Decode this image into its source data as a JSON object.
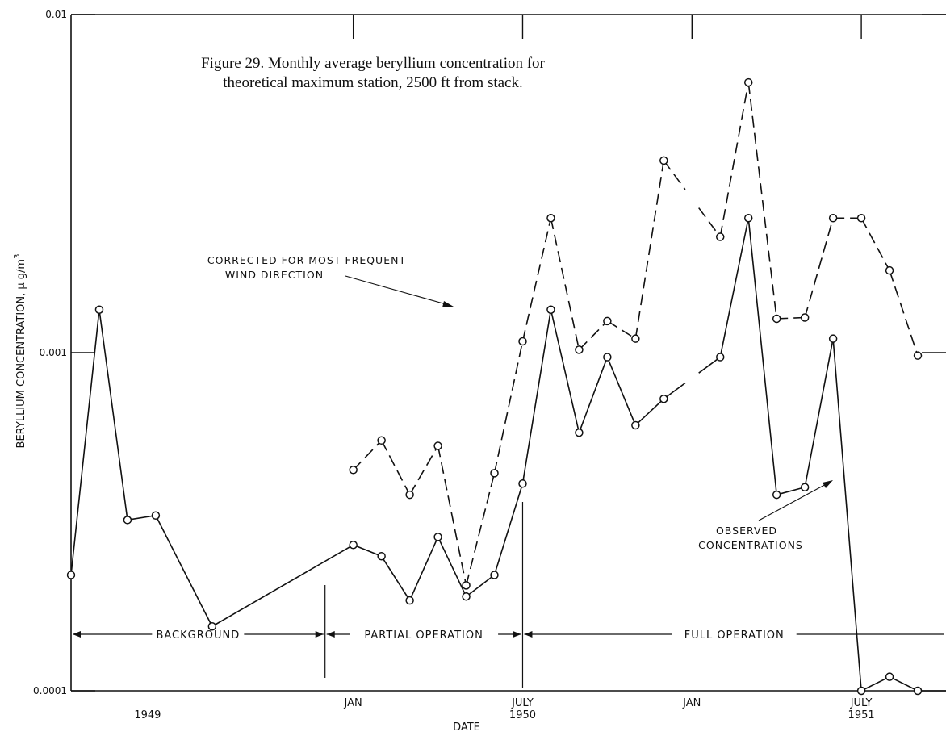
{
  "chart_data": {
    "type": "line",
    "title": "Figure 29. Monthly average beryllium concentration for",
    "subtitle": "theoretical maximum station, 2500 ft from stack.",
    "xlabel": "DATE",
    "ylabel": "BERYLLIUM  CONCENTRATION, μ g/m",
    "ylabel_sup": "3",
    "y_scale": "log",
    "ylim": [
      0.0001,
      0.01
    ],
    "y_ticks": [
      "0.01",
      "0.001",
      "0.0001"
    ],
    "x_range": [
      "1949-03",
      "1951-10"
    ],
    "x_ticks": [
      {
        "label": "JAN",
        "date": "1950-01"
      },
      {
        "label": "JULY",
        "date": "1950-07"
      },
      {
        "label": "JAN",
        "date": "1951-01"
      },
      {
        "label": "JULY",
        "date": "1951-07"
      }
    ],
    "year_labels": [
      {
        "label": "1949",
        "date": "1949-06"
      },
      {
        "label": "1950",
        "date": "1950-07"
      },
      {
        "label": "1951",
        "date": "1951-07"
      }
    ],
    "series": [
      {
        "style": "solid",
        "points": [
          {
            "date": "1949-03",
            "value": 0.00022
          },
          {
            "date": "1949-04",
            "value": 0.00134
          },
          {
            "date": "1949-05",
            "value": 0.00032
          },
          {
            "date": "1949-06",
            "value": 0.00033
          },
          {
            "date": "1949-08",
            "value": 0.000155
          },
          {
            "date": "1950-01",
            "value": 0.00027
          },
          {
            "date": "1950-02",
            "value": 0.00025
          },
          {
            "date": "1950-03",
            "value": 0.000185
          },
          {
            "date": "1950-04",
            "value": 0.000285
          },
          {
            "date": "1950-05",
            "value": 0.00019
          },
          {
            "date": "1950-06",
            "value": 0.00022
          },
          {
            "date": "1950-07",
            "value": 0.00041
          },
          {
            "date": "1950-08",
            "value": 0.00134
          },
          {
            "date": "1950-09",
            "value": 0.00058
          },
          {
            "date": "1950-10",
            "value": 0.00097
          },
          {
            "date": "1950-11",
            "value": 0.00061
          },
          {
            "date": "1950-12",
            "value": 0.00073
          },
          {
            "date": "1951-02",
            "value": 0.00097
          },
          {
            "date": "1951-03",
            "value": 0.0025
          },
          {
            "date": "1951-04",
            "value": 0.00038
          },
          {
            "date": "1951-05",
            "value": 0.0004
          },
          {
            "date": "1951-06",
            "value": 0.0011
          },
          {
            "date": "1951-07",
            "value": 0.0001
          },
          {
            "date": "1951-08",
            "value": 0.00011
          },
          {
            "date": "1951-09",
            "value": 0.0001
          }
        ],
        "gaps": [
          [
            "1950-12",
            "1951-02"
          ]
        ]
      },
      {
        "style": "dashed",
        "points": [
          {
            "date": "1950-01",
            "value": 0.00045
          },
          {
            "date": "1950-02",
            "value": 0.00055
          },
          {
            "date": "1950-03",
            "value": 0.00038
          },
          {
            "date": "1950-04",
            "value": 0.00053
          },
          {
            "date": "1950-05",
            "value": 0.000205
          },
          {
            "date": "1950-06",
            "value": 0.00044
          },
          {
            "date": "1950-07",
            "value": 0.00108
          },
          {
            "date": "1950-08",
            "value": 0.0025
          },
          {
            "date": "1950-09",
            "value": 0.00102
          },
          {
            "date": "1950-10",
            "value": 0.00124
          },
          {
            "date": "1950-11",
            "value": 0.0011
          },
          {
            "date": "1950-12",
            "value": 0.0037
          },
          {
            "date": "1951-02",
            "value": 0.0022
          },
          {
            "date": "1951-03",
            "value": 0.0063
          },
          {
            "date": "1951-04",
            "value": 0.00126
          },
          {
            "date": "1951-05",
            "value": 0.00127
          },
          {
            "date": "1951-06",
            "value": 0.0025
          },
          {
            "date": "1951-07",
            "value": 0.0025
          },
          {
            "date": "1951-08",
            "value": 0.00175
          },
          {
            "date": "1951-09",
            "value": 0.00098
          }
        ],
        "gaps": [
          [
            "1950-12",
            "1951-02"
          ]
        ]
      }
    ],
    "annotations": [
      {
        "label": "CORRECTED FOR MOST FREQUENT",
        "label2": "WIND DIRECTION",
        "series": 1
      },
      {
        "label": "OBSERVED",
        "label2": "CONCENTRATIONS",
        "series": 0
      }
    ],
    "periods": [
      {
        "label": "BACKGROUND",
        "start": "1949-03",
        "end": "1949-12"
      },
      {
        "label": "PARTIAL OPERATION",
        "start": "1949-12",
        "end": "1950-07"
      },
      {
        "label": "FULL OPERATION",
        "start": "1950-07",
        "end": "1951-10"
      }
    ]
  }
}
